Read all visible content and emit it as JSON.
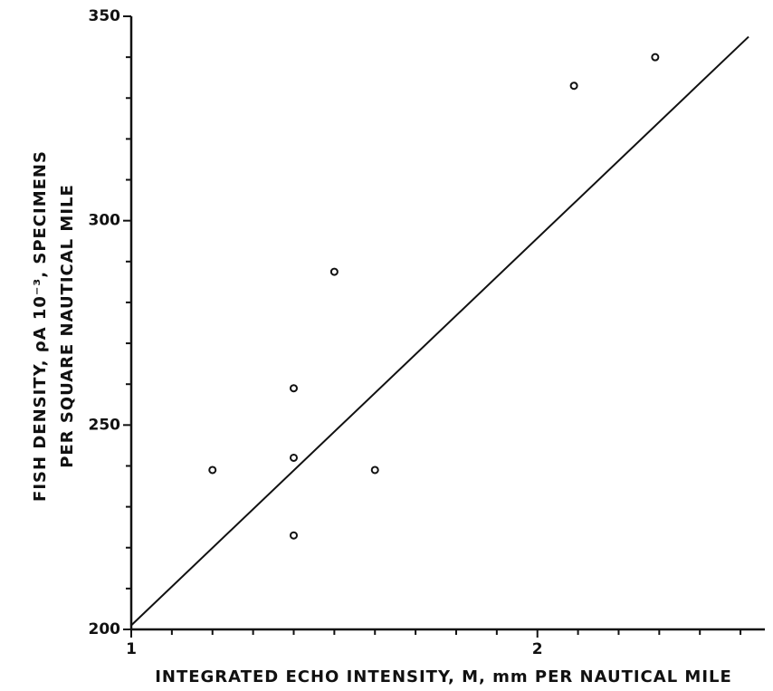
{
  "chart_data": {
    "type": "scatter",
    "x_label": "INTEGRATED ECHO INTENSITY, M, mm PER NAUTICAL MILE",
    "y_label": [
      "FISH DENSITY, ρA 10⁻³, SPECIMENS",
      "PER SQUARE NAUTICAL MILE"
    ],
    "xlim": [
      1,
      2.56
    ],
    "ylim": [
      200,
      350
    ],
    "xticks": [
      1,
      2
    ],
    "yticks": [
      200,
      250,
      300,
      350
    ],
    "x_minor_ticks": [
      1.1,
      1.2,
      1.3,
      1.4,
      1.5,
      1.6,
      1.7,
      1.8,
      1.9,
      2.1,
      2.2,
      2.3,
      2.4,
      2.5
    ],
    "y_minor_ticks": [
      210,
      220,
      230,
      240,
      260,
      270,
      280,
      290,
      310,
      320,
      330,
      340
    ],
    "color": "#111111",
    "x": [
      1.2,
      1.4,
      1.4,
      1.4,
      1.5,
      1.6,
      2.09,
      2.29
    ],
    "values": [
      239,
      259,
      242,
      223,
      287.5,
      239,
      333,
      340
    ],
    "fit_line": {
      "x": [
        1,
        2.52
      ],
      "values": [
        201,
        345
      ]
    }
  }
}
